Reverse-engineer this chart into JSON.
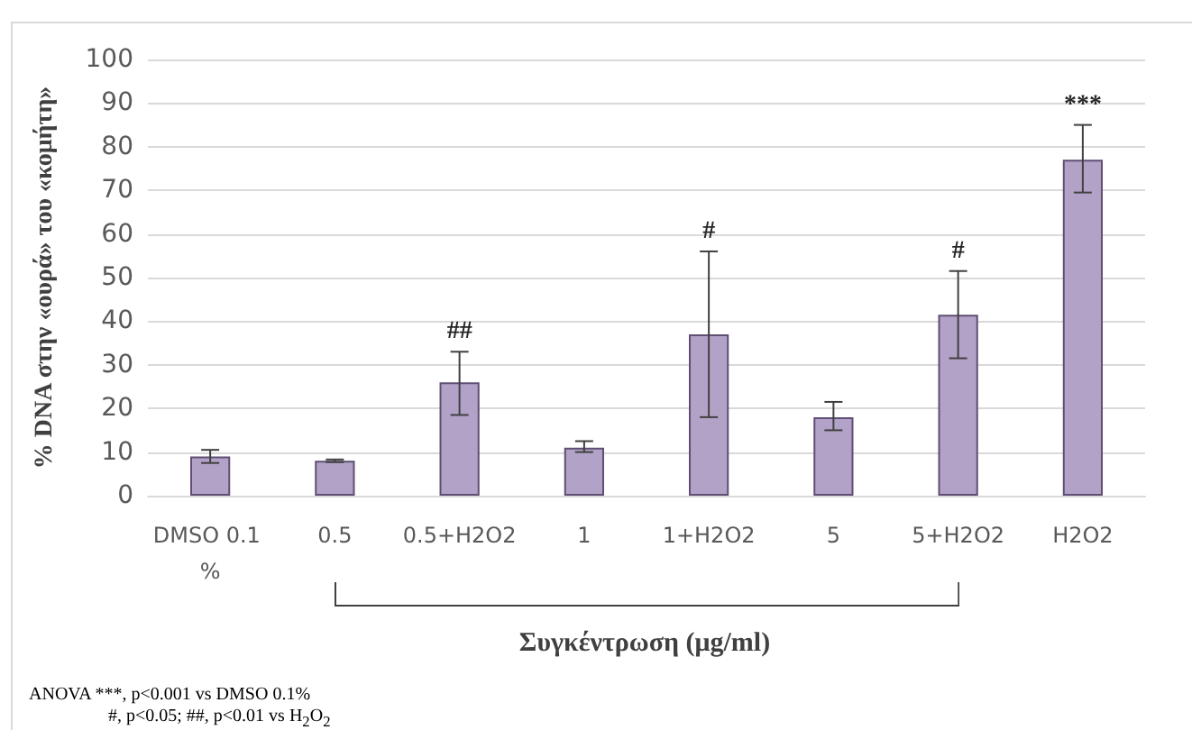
{
  "chart_data": {
    "type": "bar",
    "categories": [
      "DMSO 0.1 %",
      "0.5",
      "0.5+H2O2",
      "1",
      "1+H2O2",
      "5",
      "5+H2O2",
      "H2O2"
    ],
    "values": [
      9,
      8,
      26,
      11,
      37,
      18,
      41.5,
      77
    ],
    "errors": [
      [
        7.5,
        10.5
      ],
      [
        7.7,
        8.3
      ],
      [
        18.5,
        33
      ],
      [
        10,
        12.5
      ],
      [
        18,
        56
      ],
      [
        15,
        21.5
      ],
      [
        31.5,
        51.5
      ],
      [
        69.5,
        85
      ]
    ],
    "color": "#b3a2c7",
    "ylabel": "% DNA στην «ουρά» του «κομήτη»",
    "xlabel": "Συγκέντρωση (μg/ml)",
    "ylim": [
      0,
      100
    ],
    "yticks": [
      0,
      10,
      20,
      30,
      40,
      50,
      60,
      70,
      80,
      90,
      100
    ],
    "grid": "y",
    "annotations": [
      {
        "text": "##",
        "x": "0.5+H2O2",
        "y": 33
      },
      {
        "text": "#",
        "x": "1+H2O2",
        "y": 56
      },
      {
        "text": "#",
        "x": "5+H2O2",
        "y": 51.5
      },
      {
        "text": "***",
        "x": "H2O2",
        "y": 85
      },
      "ANOVA ***, p<0.001 vs DMSO 0.1%",
      "#, p<0.05; ##, p<0.01 vs H$_{2}$O$_{2}$"
    ]
  }
}
